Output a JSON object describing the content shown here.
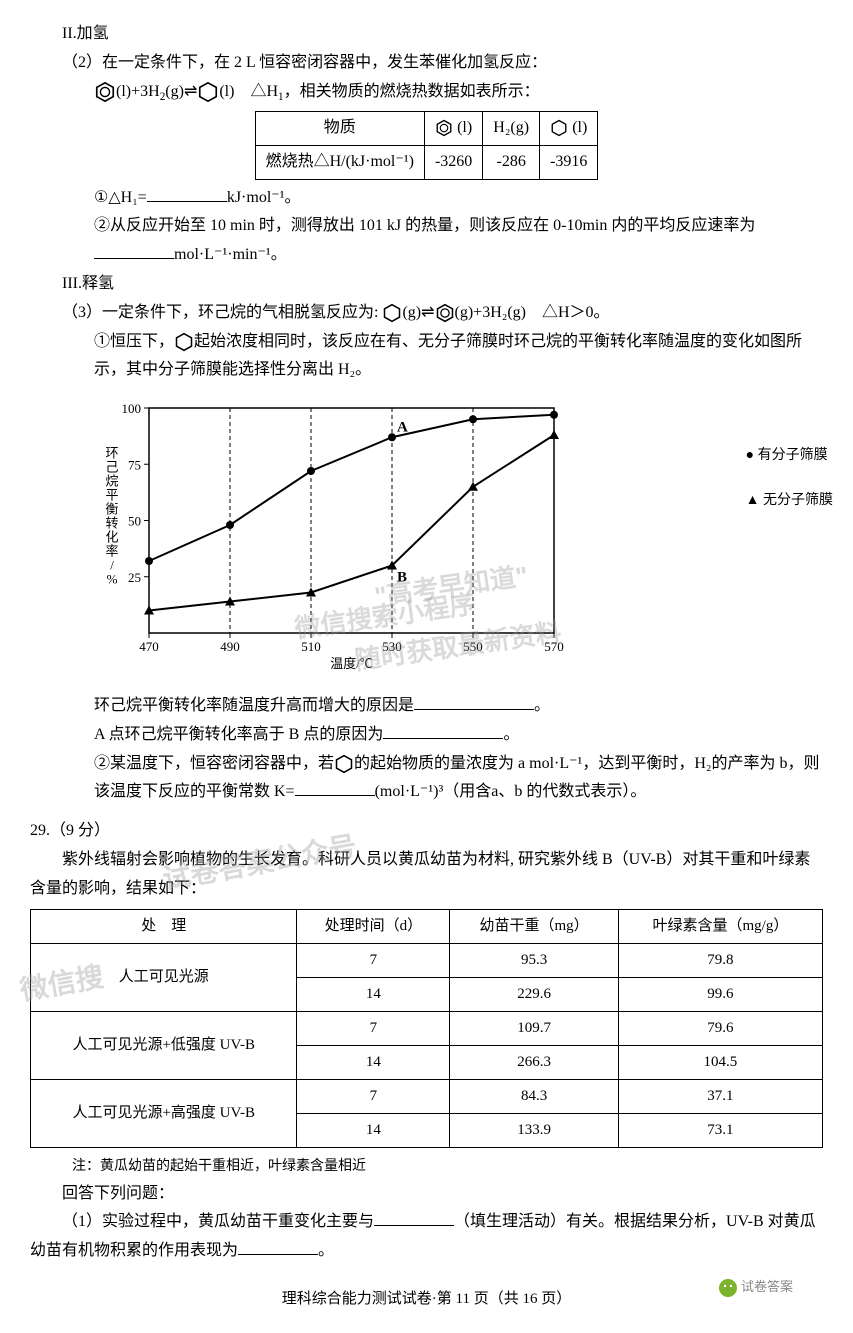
{
  "sectionII": {
    "title": "II.加氢",
    "p2_intro": "（2）在一定条件下，在 2 L 恒容密闭容器中，发生苯催化加氢反应：",
    "eqn_left": "(l)+3H",
    "eqn_sub": "2",
    "eqn_mid": "(g)⇌",
    "eqn_right": "(l)　△H",
    "eqn_end": "，相关物质的燃烧热数据如表所示：",
    "table1": {
      "h1": "物质",
      "h2_suffix": "(l)",
      "h3": "H₂(g)",
      "h4_suffix": "(l)",
      "r1_label": "燃烧热△H/(kJ·mol⁻¹)",
      "v1": "-3260",
      "v2": "-286",
      "v3": "-3916"
    },
    "q1_pre": "①△H₁=",
    "q1_unit": "kJ·mol⁻¹。",
    "q2": "②从反应开始至 10 min 时，测得放出 101 kJ 的热量，则该反应在 0-10min 内的平均反应速率为",
    "q2_unit": "mol·L⁻¹·min⁻¹。"
  },
  "sectionIII": {
    "title": "III.释氢",
    "p3_intro": "（3）一定条件下，环己烷的气相脱氢反应为:",
    "p3_eqn_a": "(g)⇌",
    "p3_eqn_b": "(g)+3H₂(g)　△H＞0。",
    "q1a": "①恒压下，",
    "q1b": "起始浓度相同时，该反应在有、无分子筛膜时环己烷的平衡转化率随温度的变化如图所示，其中分子筛膜能选择性分离出 H₂。",
    "chart": {
      "ylabel": "环己烷平衡转化率/%",
      "xlabel": "温度/℃",
      "yticks": [
        25,
        50,
        75,
        100
      ],
      "xticks": [
        470,
        490,
        510,
        530,
        550,
        570
      ],
      "legend1": "有分子筛膜",
      "legend2": "无分子筛膜",
      "series1_x": [
        470,
        490,
        510,
        530,
        550,
        570
      ],
      "series1_y": [
        32,
        48,
        72,
        87,
        95,
        97
      ],
      "series2_x": [
        470,
        490,
        510,
        530,
        550,
        570
      ],
      "series2_y": [
        10,
        14,
        18,
        30,
        65,
        88
      ],
      "pointA": "A",
      "pointB": "B",
      "marker1": "circle",
      "marker2": "triangle",
      "line_color": "#000000",
      "grid_style": "dashed"
    },
    "q1c": "环己烷平衡转化率随温度升高而增大的原因是",
    "q1c_end": "。",
    "q1d": "A 点环己烷平衡转化率高于 B 点的原因为",
    "q1d_end": "。",
    "q2a": "②某温度下，恒容密闭容器中，若",
    "q2b": "的起始物质的量浓度为 a mol·L⁻¹，达到平衡时，H₂的产率为 b，则该温度下反应的平衡常数 K=",
    "q2c": "(mol·L⁻¹)³（用含a、b 的代数式表示）。"
  },
  "q29": {
    "num": "29.（9 分）",
    "intro": "紫外线辐射会影响植物的生长发育。科研人员以黄瓜幼苗为材料, 研究紫外线 B（UV-B）对其干重和叶绿素含量的影响，结果如下：",
    "table": {
      "h1": "处　理",
      "h2": "处理时间（d）",
      "h3": "幼苗干重（mg）",
      "h4": "叶绿素含量（mg/g）",
      "r1": "人工可见光源",
      "r2": "人工可见光源+低强度 UV-B",
      "r3": "人工可见光源+高强度 UV-B",
      "d": [
        [
          "7",
          "95.3",
          "79.8"
        ],
        [
          "14",
          "229.6",
          "99.6"
        ],
        [
          "7",
          "109.7",
          "79.6"
        ],
        [
          "14",
          "266.3",
          "104.5"
        ],
        [
          "7",
          "84.3",
          "37.1"
        ],
        [
          "14",
          "133.9",
          "73.1"
        ]
      ]
    },
    "note": "注：黄瓜幼苗的起始干重相近，叶绿素含量相近",
    "answer_prompt": "回答下列问题：",
    "q1a": "（1）实验过程中，黄瓜幼苗干重变化主要与",
    "q1b": "（填生理活动）有关。根据结果分析，UV-B 对黄瓜幼苗有机物积累的作用表现为",
    "q1c": "。"
  },
  "footer": "理科综合能力测试试卷·第 11 页（共 16 页）",
  "wechat": "试卷答案",
  "watermarks": {
    "w1": "\"高考早知道\"",
    "w2": "微信搜索小程序",
    "w3": "随时获取最新资料",
    "w4": "试卷答案公众号",
    "w5": "微信搜"
  }
}
